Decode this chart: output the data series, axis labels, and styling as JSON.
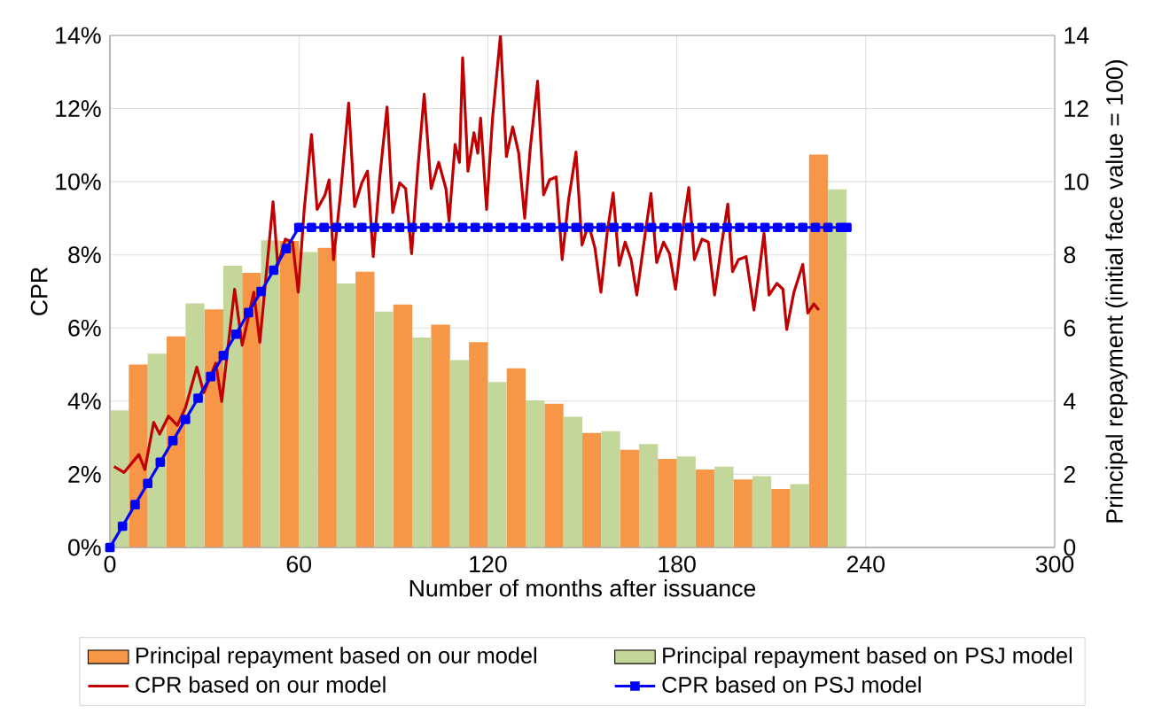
{
  "chart_data": {
    "type": "line",
    "xlabel": "Number of months after issuance",
    "ylabel": "CPR",
    "y2label": "Principal repayment (initial face value = 100)",
    "xlim": [
      0,
      300
    ],
    "xticks": [
      0,
      60,
      120,
      180,
      240,
      300
    ],
    "ylim": [
      0,
      14
    ],
    "yticks": [
      {
        "value": 0,
        "label": "0%"
      },
      {
        "value": 2,
        "label": "2%"
      },
      {
        "value": 4,
        "label": "4%"
      },
      {
        "value": 6,
        "label": "6%"
      },
      {
        "value": 8,
        "label": "8%"
      },
      {
        "value": 10,
        "label": "10%"
      },
      {
        "value": 12,
        "label": "12%"
      },
      {
        "value": 14,
        "label": "14%"
      }
    ],
    "y2lim": [
      0,
      14
    ],
    "y2ticks": [
      0,
      2,
      4,
      6,
      8,
      10,
      12,
      14
    ],
    "grid": true,
    "legend": "bottom",
    "series": [
      {
        "name": "Principal repayment based on our model",
        "type": "bar",
        "axis": "y2",
        "color": "#f79646",
        "x": [
          9,
          21,
          33,
          45,
          57,
          69,
          81,
          93,
          105,
          117,
          129,
          141,
          153,
          165,
          177,
          189,
          201,
          213,
          225
        ],
        "values": [
          5.0,
          5.77,
          6.51,
          7.51,
          8.38,
          8.19,
          7.54,
          6.64,
          6.09,
          5.61,
          4.9,
          3.93,
          3.13,
          2.67,
          2.42,
          2.13,
          1.86,
          1.6,
          10.74
        ]
      },
      {
        "name": "Principal repayment based on PSJ model",
        "type": "bar",
        "axis": "y2",
        "color": "#c4d79b",
        "x": [
          3,
          15,
          27,
          39,
          51,
          63,
          75,
          87,
          99,
          111,
          123,
          135,
          147,
          159,
          171,
          183,
          195,
          207,
          219,
          231
        ],
        "values": [
          3.75,
          5.3,
          6.67,
          7.7,
          8.4,
          8.08,
          7.22,
          6.45,
          5.74,
          5.12,
          4.52,
          4.02,
          3.57,
          3.18,
          2.83,
          2.49,
          2.21,
          1.95,
          1.73,
          9.79
        ]
      },
      {
        "name": "CPR based on our model",
        "color": "#c00000",
        "marker": "none",
        "x": [
          1.3,
          4.5,
          9.2,
          11.1,
          13.9,
          15.8,
          18.6,
          21.4,
          24,
          27.6,
          29.8,
          33.6,
          35.5,
          39.6,
          42,
          45.7,
          47.6,
          51.8,
          53.3,
          55.7,
          58,
          59.8,
          61.7,
          64,
          65.8,
          68.3,
          69.6,
          71,
          73.2,
          75.8,
          77.7,
          80,
          81.8,
          83.6,
          85.7,
          88,
          89.8,
          92,
          93.9,
          95.8,
          97.7,
          99.8,
          102,
          104.4,
          106.7,
          107.7,
          109.6,
          111,
          112,
          113.7,
          115.6,
          116.8,
          117.7,
          119.6,
          121.5,
          124,
          125.9,
          127.9,
          129.8,
          131.7,
          133.5,
          135.8,
          137.7,
          139.6,
          141.7,
          143.6,
          145.6,
          148,
          149.9,
          152,
          154,
          155.9,
          158,
          159.8,
          161.7,
          163.6,
          165.5,
          167.3,
          169.6,
          171.8,
          173.6,
          175.8,
          177.7,
          179.6,
          181.7,
          183.8,
          185.6,
          188,
          190,
          192,
          194.2,
          196.2,
          197.7,
          199.6,
          202,
          204.5,
          206.3,
          207.7,
          209.3,
          211.8,
          213.7,
          214.9,
          217.2,
          220,
          221.6,
          223.5,
          225.1
        ],
        "values": [
          2.21,
          2.05,
          2.54,
          2.13,
          3.42,
          3.1,
          3.59,
          3.34,
          3.82,
          4.93,
          4.23,
          5.04,
          3.99,
          7.06,
          5.53,
          6.98,
          5.61,
          9.45,
          7.71,
          8.43,
          8.35,
          6.98,
          9.24,
          11.29,
          9.24,
          9.64,
          10.05,
          7.87,
          9.64,
          12.15,
          9.32,
          9.97,
          10.29,
          7.95,
          10.13,
          12.04,
          9.16,
          9.97,
          9.81,
          8.03,
          10.29,
          12.39,
          9.81,
          10.53,
          9.81,
          8.92,
          11.02,
          10.53,
          13.39,
          10.29,
          11.34,
          10.78,
          11.74,
          9.24,
          11.74,
          14.0,
          10.69,
          11.5,
          10.78,
          9.0,
          10.94,
          12.75,
          9.64,
          10.05,
          10.13,
          7.87,
          9.48,
          10.81,
          8.27,
          8.84,
          8.19,
          6.98,
          8.68,
          9.69,
          7.71,
          8.35,
          7.87,
          6.9,
          8.35,
          9.68,
          7.79,
          8.35,
          8.03,
          7.06,
          8.59,
          9.84,
          7.87,
          8.43,
          8.35,
          6.9,
          8.27,
          9.39,
          7.54,
          7.87,
          7.95,
          6.49,
          7.63,
          8.59,
          6.9,
          7.22,
          7.06,
          5.96,
          6.98,
          7.74,
          6.41,
          6.66,
          6.49
        ]
      },
      {
        "name": "CPR based on PSJ model",
        "color": "#0000ff",
        "marker": "square",
        "x": [
          0,
          4,
          8,
          12,
          16,
          20,
          24,
          28,
          32,
          36,
          40,
          44,
          48,
          52,
          56,
          60,
          64,
          68,
          72,
          76,
          80,
          84,
          88,
          92,
          96,
          100,
          104,
          108,
          112,
          116,
          120,
          124,
          128,
          132,
          136,
          140,
          144,
          148,
          152,
          156,
          160,
          164,
          168,
          172,
          176,
          180,
          184,
          188,
          192,
          196,
          200,
          204,
          208,
          212,
          216,
          220,
          224,
          228,
          232,
          234
        ],
        "values": [
          0,
          0.58,
          1.17,
          1.75,
          2.33,
          2.92,
          3.5,
          4.08,
          4.67,
          5.25,
          5.83,
          6.42,
          7.0,
          7.58,
          8.17,
          8.75,
          8.75,
          8.75,
          8.75,
          8.75,
          8.75,
          8.75,
          8.75,
          8.75,
          8.75,
          8.75,
          8.75,
          8.75,
          8.75,
          8.75,
          8.75,
          8.75,
          8.75,
          8.75,
          8.75,
          8.75,
          8.75,
          8.75,
          8.75,
          8.75,
          8.75,
          8.75,
          8.75,
          8.75,
          8.75,
          8.75,
          8.75,
          8.75,
          8.75,
          8.75,
          8.75,
          8.75,
          8.75,
          8.75,
          8.75,
          8.75,
          8.75,
          8.75,
          8.75,
          8.75
        ]
      }
    ]
  }
}
